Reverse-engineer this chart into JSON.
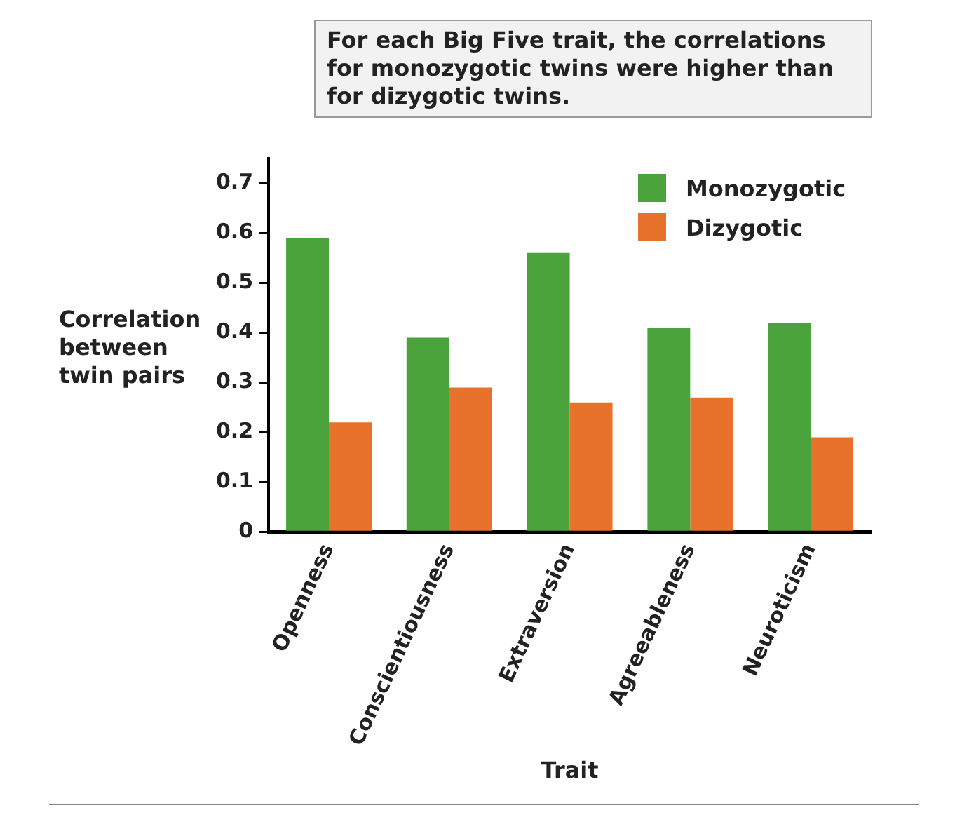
{
  "chart_data": {
    "type": "bar",
    "title": "For each Big Five trait, the correlations for monozygotic twins were higher than for dizygotic twins.",
    "xlabel": "Trait",
    "ylabel": "Correlation between twin pairs",
    "categories": [
      "Openness",
      "Conscientiousness",
      "Extraversion",
      "Agreeableness",
      "Neuroticism"
    ],
    "series": [
      {
        "name": "Monozygotic",
        "color": "#4ba33c",
        "values": [
          0.59,
          0.39,
          0.56,
          0.41,
          0.42
        ]
      },
      {
        "name": "Dizygotic",
        "color": "#e8712c",
        "values": [
          0.22,
          0.29,
          0.26,
          0.27,
          0.19
        ]
      }
    ],
    "ylim": [
      0,
      0.75
    ],
    "yticks": [
      0,
      0.1,
      0.2,
      0.3,
      0.4,
      0.5,
      0.6,
      0.7
    ],
    "grid": false,
    "legend": "top right"
  }
}
